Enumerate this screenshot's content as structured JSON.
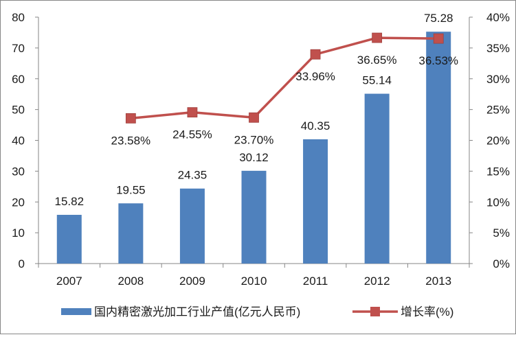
{
  "chart_data": {
    "type": "bar",
    "categories": [
      "2007",
      "2008",
      "2009",
      "2010",
      "2011",
      "2012",
      "2013"
    ],
    "series": [
      {
        "name": "国内精密激光加工行业产值(亿元人民币)",
        "type": "bar",
        "axis": "left",
        "color": "#4F81BD",
        "values": [
          15.82,
          19.55,
          24.35,
          30.12,
          40.35,
          55.14,
          75.28
        ],
        "labels": [
          "15.82",
          "19.55",
          "24.35",
          "30.12",
          "40.35",
          "55.14",
          "75.28"
        ]
      },
      {
        "name": "增长率(%)",
        "type": "line",
        "axis": "right",
        "color": "#C0504D",
        "values": [
          null,
          23.58,
          24.55,
          23.7,
          33.96,
          36.65,
          36.53
        ],
        "labels": [
          null,
          "23.58%",
          "24.55%",
          "23.70%",
          "33.96%",
          "36.65%",
          "36.53%"
        ]
      }
    ],
    "left_axis": {
      "ylim": [
        0,
        80
      ],
      "ticks": [
        0,
        10,
        20,
        30,
        40,
        50,
        60,
        70,
        80
      ],
      "tick_labels": [
        "0",
        "10",
        "20",
        "30",
        "40",
        "50",
        "60",
        "70",
        "80"
      ]
    },
    "right_axis": {
      "ylim": [
        0,
        40
      ],
      "ticks": [
        0,
        5,
        10,
        15,
        20,
        25,
        30,
        35,
        40
      ],
      "tick_labels": [
        "0%",
        "5%",
        "10%",
        "15%",
        "20%",
        "25%",
        "30%",
        "35%",
        "40%"
      ]
    },
    "grid": false,
    "legend_position": "bottom"
  }
}
